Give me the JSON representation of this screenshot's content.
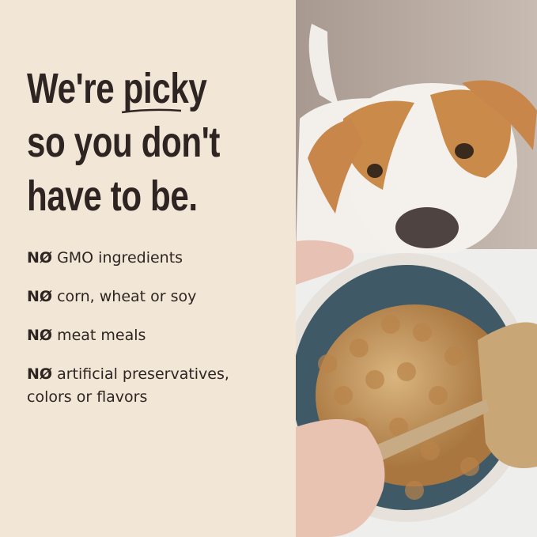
{
  "headline": {
    "line1_prefix": "We're",
    "line1_emphasis": "picky",
    "line2": "so you don't",
    "line3": "have to be."
  },
  "benefits": [
    {
      "prefix": "NØ",
      "text": "GMO ingredients"
    },
    {
      "prefix": "NØ",
      "text": "corn, wheat or soy"
    },
    {
      "prefix": "NØ",
      "text": "meat meals"
    },
    {
      "prefix": "NØ",
      "text": "artificial preservatives, colors or flavors"
    }
  ],
  "colors": {
    "background": "#f2e6d6",
    "text": "#2e2523"
  },
  "photo": {
    "subject": "dog-looking-at-food-bowl-photo"
  }
}
